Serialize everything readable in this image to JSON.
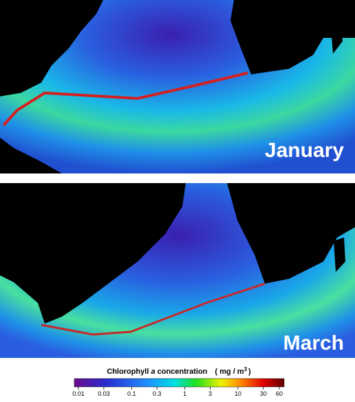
{
  "panels": [
    {
      "label": "January"
    },
    {
      "label": "March"
    }
  ],
  "colorbar": {
    "title": [
      "Chlorophyll",
      "a",
      "concentration",
      "( mg / m",
      "3",
      ")"
    ],
    "lim": [
      0.01,
      60
    ],
    "log": true,
    "ticks": [
      0.01,
      0.03,
      0.1,
      0.3,
      1,
      3,
      10,
      30,
      60
    ]
  }
}
